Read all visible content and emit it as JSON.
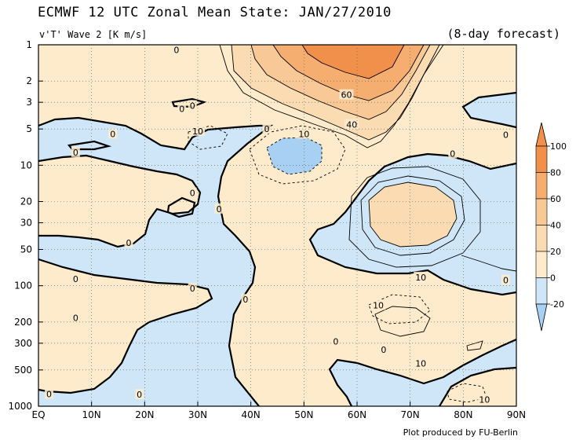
{
  "header": {
    "title": "ECMWF 12 UTC Zonal Mean State: JAN/27/2010",
    "subtitle": "v'T' Wave 2 [K m/s]",
    "forecast": "(8-day forecast)",
    "credit": "Plot produced by FU-Berlin"
  },
  "colors": {
    "negative": "#cfe6f8",
    "negative_strong": "#a8d0f2",
    "band_0_20": "#fdebcc",
    "band_20_40": "#fbdcb2",
    "band_40_60": "#f8c896",
    "band_60_80": "#f5ae70",
    "band_80_100": "#f1904a"
  },
  "chart_data": {
    "type": "contour",
    "x_ticks": [
      "EQ",
      "10N",
      "20N",
      "30N",
      "40N",
      "50N",
      "60N",
      "70N",
      "80N",
      "90N"
    ],
    "x_values": [
      0,
      10,
      20,
      30,
      40,
      50,
      60,
      70,
      80,
      90
    ],
    "y_ticks": [
      "1",
      "2",
      "3",
      "5",
      "10",
      "20",
      "30",
      "50",
      "100",
      "200",
      "300",
      "500",
      "1000"
    ],
    "y_values": [
      1,
      2,
      3,
      5,
      10,
      20,
      30,
      50,
      100,
      200,
      300,
      500,
      1000
    ],
    "y_scale": "log",
    "y_inverted": true,
    "xlim": [
      0,
      90
    ],
    "ylim": [
      1,
      1000
    ],
    "colorbar": {
      "labels": [
        "100",
        "80",
        "60",
        "40",
        "20",
        "0",
        "-20"
      ],
      "levels": [
        100,
        80,
        60,
        40,
        20,
        0,
        -20
      ]
    },
    "contour_labels": [
      {
        "text": "0",
        "lat": 26,
        "p": 1.1
      },
      {
        "text": "0",
        "lat": 27,
        "p": 3.4
      },
      {
        "text": "0",
        "lat": 29,
        "p": 3.2
      },
      {
        "text": "10",
        "lat": 30,
        "p": 5.2
      },
      {
        "text": "0",
        "lat": 14,
        "p": 5.5
      },
      {
        "text": "0",
        "lat": 7,
        "p": 7.8
      },
      {
        "text": "0",
        "lat": 43,
        "p": 5.0
      },
      {
        "text": "10",
        "lat": 50,
        "p": 5.5
      },
      {
        "text": "60",
        "lat": 58,
        "p": 2.6
      },
      {
        "text": "40",
        "lat": 59,
        "p": 4.6
      },
      {
        "text": "0",
        "lat": 88,
        "p": 5.6
      },
      {
        "text": "0",
        "lat": 78,
        "p": 8.0
      },
      {
        "text": "0",
        "lat": 29,
        "p": 17
      },
      {
        "text": "0",
        "lat": 34,
        "p": 23
      },
      {
        "text": "0",
        "lat": 17,
        "p": 44
      },
      {
        "text": "10",
        "lat": 72,
        "p": 85
      },
      {
        "text": "0",
        "lat": 88,
        "p": 90
      },
      {
        "text": "0",
        "lat": 7,
        "p": 88
      },
      {
        "text": "0",
        "lat": 29,
        "p": 105
      },
      {
        "text": "0",
        "lat": 39,
        "p": 130
      },
      {
        "text": "10",
        "lat": 64,
        "p": 145
      },
      {
        "text": "0",
        "lat": 7,
        "p": 185
      },
      {
        "text": "0",
        "lat": 56,
        "p": 290
      },
      {
        "text": "0",
        "lat": 65,
        "p": 340
      },
      {
        "text": "10",
        "lat": 72,
        "p": 440
      },
      {
        "text": "0",
        "lat": 2,
        "p": 790
      },
      {
        "text": "0",
        "lat": 19,
        "p": 800
      },
      {
        "text": "10",
        "lat": 84,
        "p": 880
      }
    ]
  }
}
